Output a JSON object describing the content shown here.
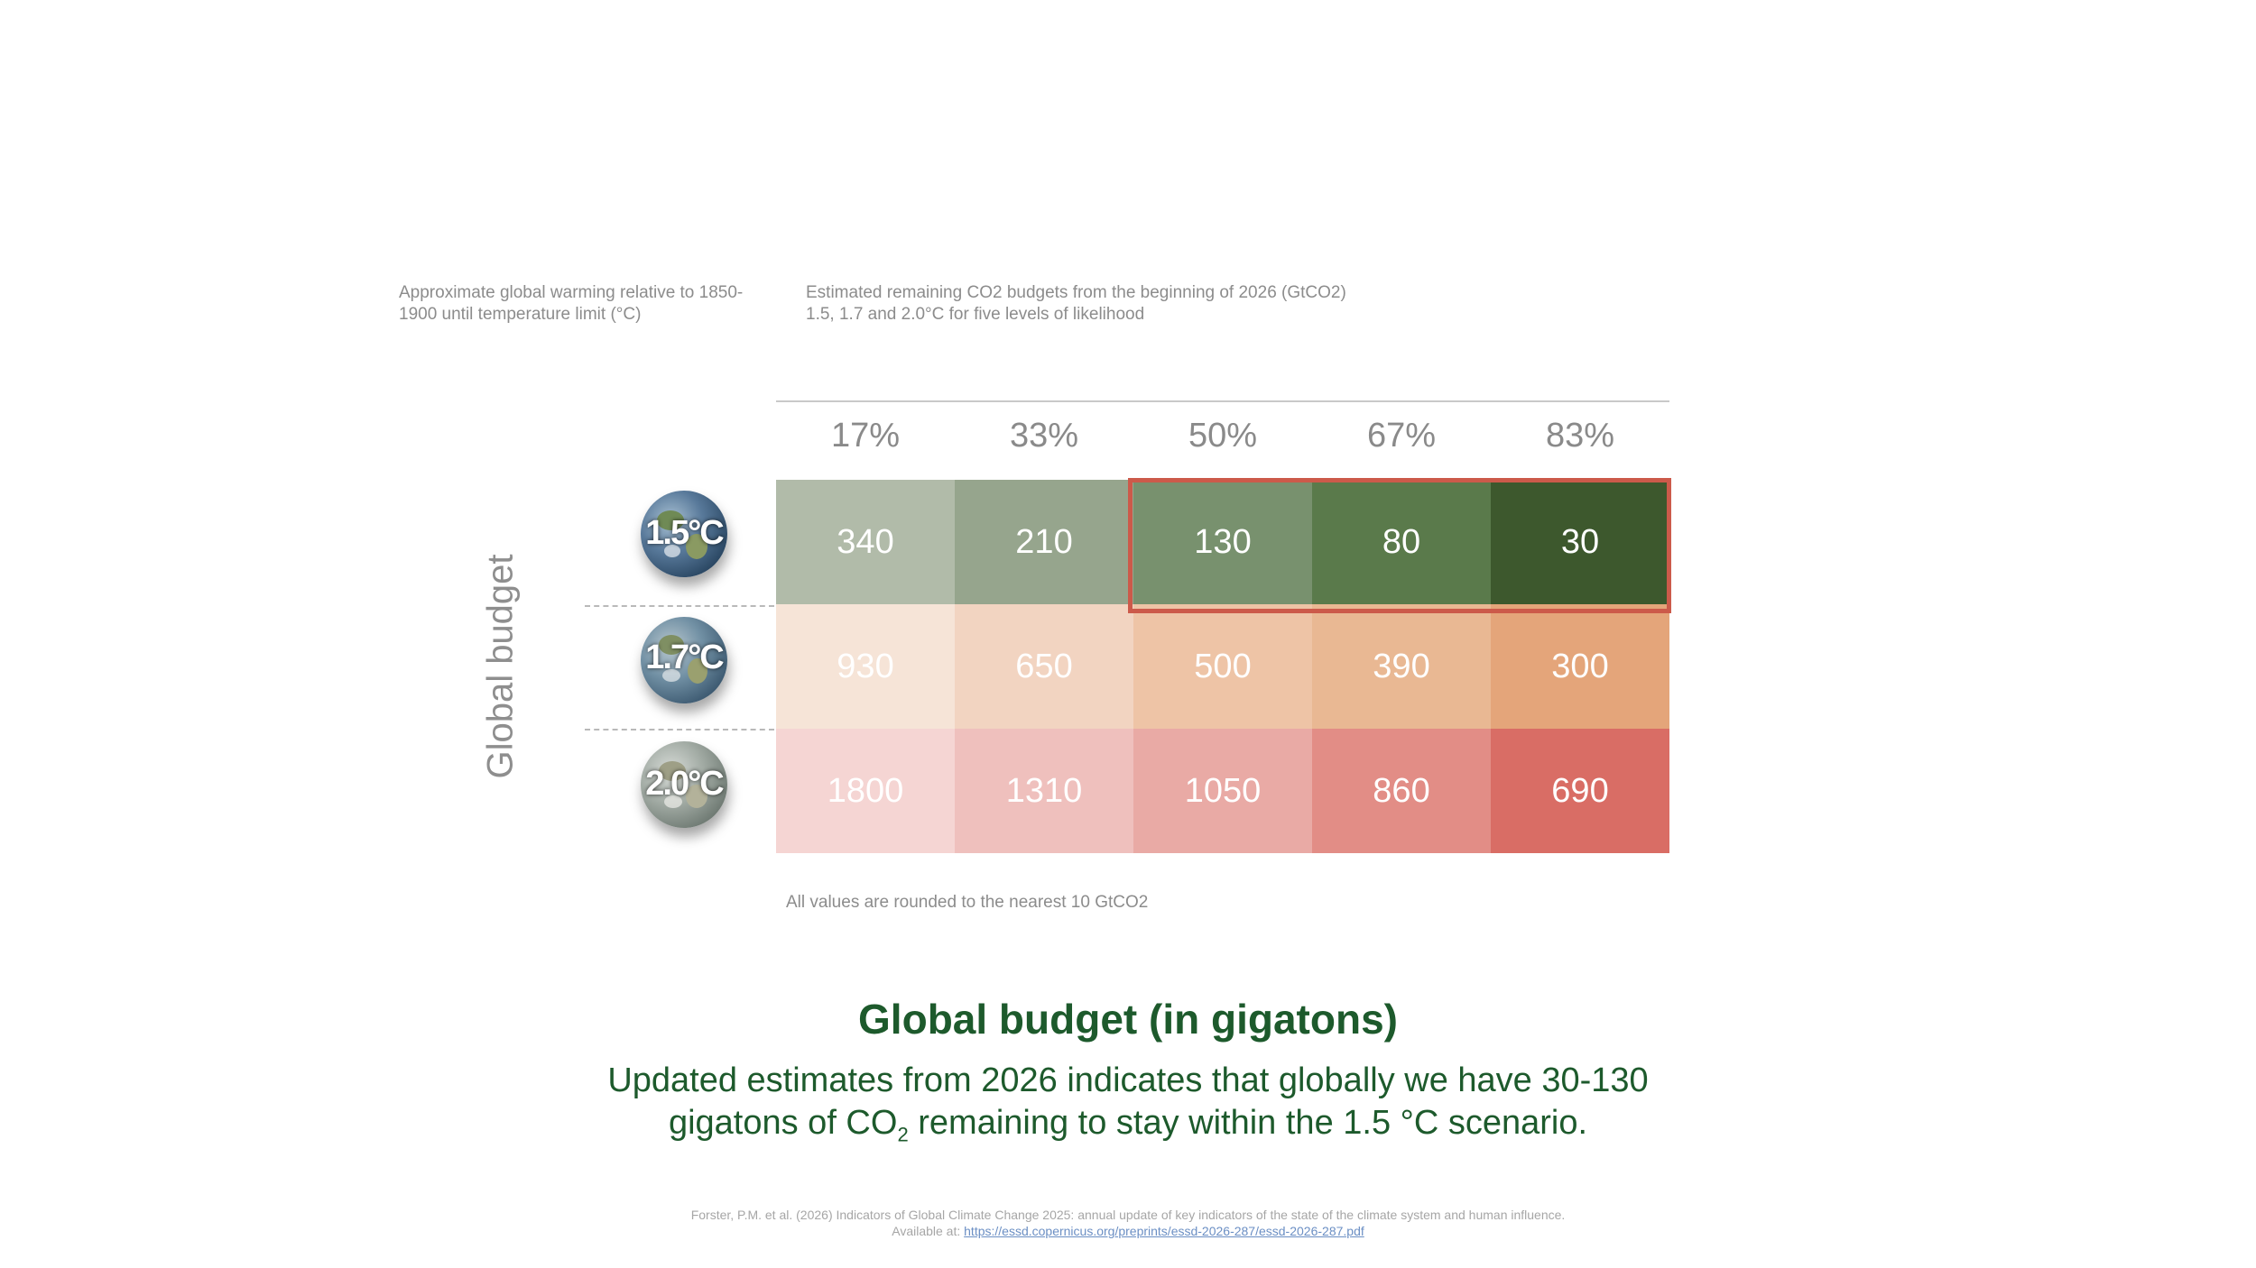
{
  "header": {
    "left_note": "Approximate global warming relative to 1850-1900 until temperature limit (°C)",
    "right_note_line1": "Estimated remaining CO2 budgets  from the beginning of 2026 (GtCO2)",
    "right_note_line2": "1.5, 1.7 and 2.0°C for five levels of likelihood"
  },
  "chart_data": {
    "type": "heatmap",
    "ylabel": "Global budget",
    "columns": [
      "17%",
      "33%",
      "50%",
      "67%",
      "83%"
    ],
    "rows": [
      {
        "label": "1.5°C",
        "values": [
          340,
          210,
          130,
          80,
          30
        ],
        "colors": [
          "#b1bba9",
          "#96a58d",
          "#78916e",
          "#5a7a4b",
          "#3d582d"
        ]
      },
      {
        "label": "1.7°C",
        "values": [
          930,
          650,
          500,
          390,
          300
        ],
        "colors": [
          "#f6e4d7",
          "#f2d4c1",
          "#eec4a6",
          "#e9b893",
          "#e4a57a"
        ]
      },
      {
        "label": "2.0°C",
        "values": [
          1800,
          1310,
          1050,
          860,
          690
        ],
        "colors": [
          "#f5d5d3",
          "#efc0bd",
          "#e9aaa5",
          "#e28d86",
          "#d96d65"
        ]
      }
    ],
    "highlight": {
      "row": "1.5°C",
      "columns": [
        "50%",
        "67%",
        "83%"
      ],
      "color": "#cc5a4a"
    }
  },
  "footnote": "All values are rounded to the nearest 10 GtCO2",
  "title": "Global budget (in gigatons)",
  "subtitle": {
    "line1": "Updated estimates from 2026 indicates that globally we have 30-130",
    "line2_before": "gigatons of CO",
    "line2_sub": "2",
    "line2_after": " remaining to stay within the 1.5 °C scenario."
  },
  "citation": {
    "line1": "Forster, P.M. et al. (2026) Indicators of Global Climate Change 2025: annual update of key indicators of the state of the climate system and human influence.",
    "line2_prefix": "Available at: ",
    "link": "https://essd.copernicus.org/preprints/essd-2026-287/essd-2026-287.pdf"
  }
}
